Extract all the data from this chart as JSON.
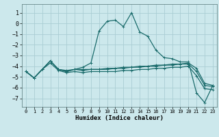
{
  "xlabel": "Humidex (Indice chaleur)",
  "background_color": "#cce8ec",
  "grid_color": "#aacdd4",
  "line_color": "#1a6b6b",
  "xlim": [
    -0.5,
    23.5
  ],
  "ylim": [
    -7.8,
    1.8
  ],
  "yticks": [
    1,
    0,
    -1,
    -2,
    -3,
    -4,
    -5,
    -6,
    -7
  ],
  "xticks": [
    0,
    1,
    2,
    3,
    4,
    5,
    6,
    7,
    8,
    9,
    10,
    11,
    12,
    13,
    14,
    15,
    16,
    17,
    18,
    19,
    20,
    21,
    22,
    23
  ],
  "line1_x": [
    0,
    1,
    2,
    3,
    4,
    5,
    6,
    7,
    8,
    9,
    10,
    11,
    12,
    13,
    14,
    15,
    16,
    17,
    18,
    19,
    20,
    21,
    22,
    23
  ],
  "line1_y": [
    -4.5,
    -5.1,
    -4.3,
    -3.5,
    -4.3,
    -4.5,
    -4.3,
    -4.1,
    -3.7,
    -0.7,
    0.2,
    0.3,
    -0.3,
    1.0,
    -0.8,
    -1.2,
    -2.5,
    -3.2,
    -3.3,
    -3.6,
    -3.6,
    -6.5,
    -7.4,
    -5.8
  ],
  "line2_x": [
    0,
    1,
    2,
    3,
    4,
    5,
    6,
    7,
    8,
    9,
    10,
    11,
    12,
    13,
    14,
    15,
    16,
    17,
    18,
    19,
    20,
    21,
    22,
    23
  ],
  "line2_y": [
    -4.5,
    -5.1,
    -4.3,
    -3.5,
    -4.3,
    -4.5,
    -4.3,
    -4.3,
    -4.3,
    -4.3,
    -4.2,
    -4.2,
    -4.1,
    -4.1,
    -4.0,
    -4.0,
    -3.9,
    -3.9,
    -3.8,
    -3.8,
    -3.7,
    -4.2,
    -5.6,
    -5.8
  ],
  "line3_x": [
    0,
    1,
    2,
    3,
    4,
    5,
    6,
    7,
    8,
    9,
    10,
    11,
    12,
    13,
    14,
    15,
    16,
    17,
    18,
    19,
    20,
    21,
    22,
    23
  ],
  "line3_y": [
    -4.5,
    -5.1,
    -4.3,
    -3.5,
    -4.3,
    -4.4,
    -4.3,
    -4.4,
    -4.3,
    -4.3,
    -4.3,
    -4.2,
    -4.2,
    -4.1,
    -4.1,
    -4.0,
    -4.0,
    -3.9,
    -3.9,
    -3.8,
    -3.8,
    -4.5,
    -5.8,
    -5.9
  ],
  "line4_x": [
    0,
    1,
    2,
    3,
    4,
    5,
    6,
    7,
    8,
    9,
    10,
    11,
    12,
    13,
    14,
    15,
    16,
    17,
    18,
    19,
    20,
    21,
    22,
    23
  ],
  "line4_y": [
    -4.5,
    -5.1,
    -4.3,
    -3.7,
    -4.4,
    -4.6,
    -4.5,
    -4.6,
    -4.5,
    -4.5,
    -4.5,
    -4.5,
    -4.4,
    -4.4,
    -4.3,
    -4.3,
    -4.2,
    -4.2,
    -4.1,
    -4.1,
    -4.0,
    -4.9,
    -6.1,
    -6.2
  ]
}
